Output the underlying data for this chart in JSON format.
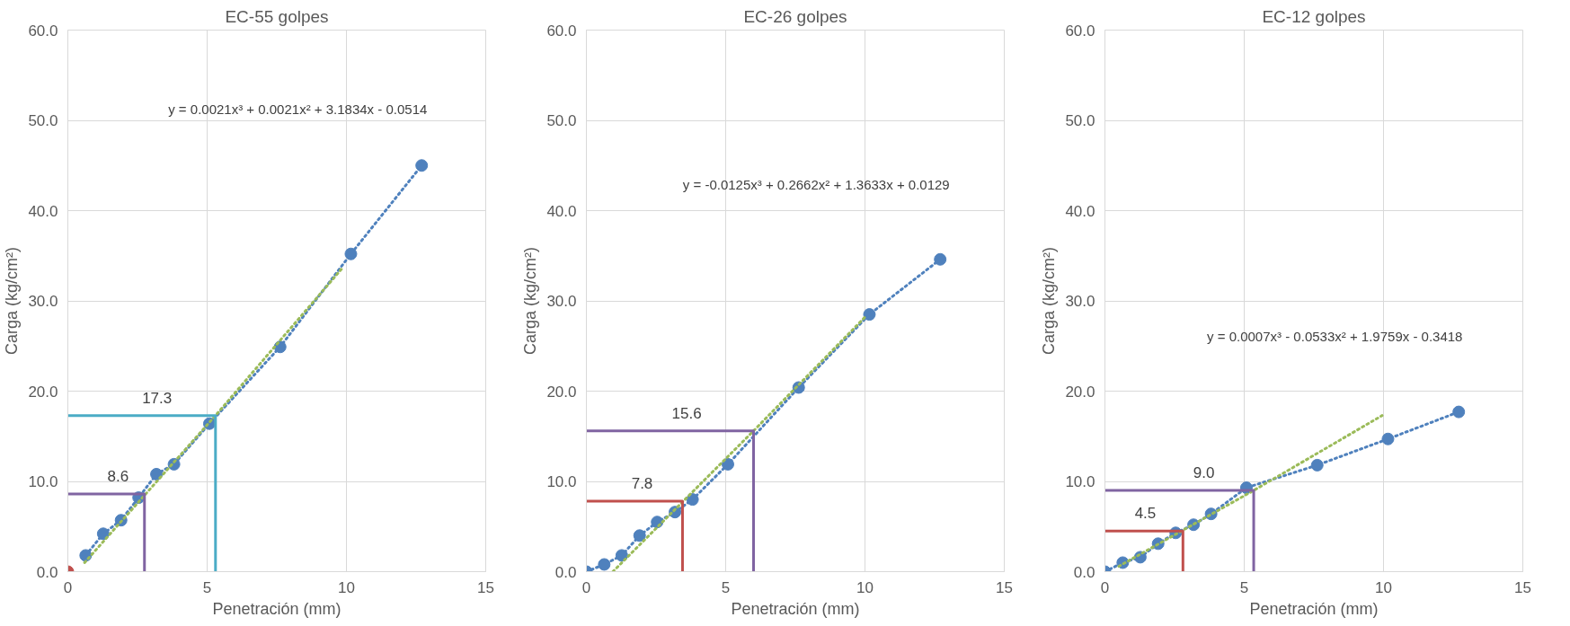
{
  "chart_data": [
    {
      "type": "line",
      "title": "EC-55 golpes",
      "xlabel": "Penetración (mm)",
      "ylabel": "Carga (kg/cm²)",
      "xlim": [
        0,
        15
      ],
      "xticks": [
        0,
        5,
        10,
        15
      ],
      "ylim": [
        0,
        60
      ],
      "yticks": [
        {
          "value": 0,
          "label": "0.0"
        },
        {
          "value": 10,
          "label": "10.0"
        },
        {
          "value": 20,
          "label": "20.0"
        },
        {
          "value": 30,
          "label": "30.0"
        },
        {
          "value": 40,
          "label": "40.0"
        },
        {
          "value": 50,
          "label": "50.0"
        },
        {
          "value": 60,
          "label": "60.0"
        }
      ],
      "grid": true,
      "series": [
        {
          "color": "#4f81bd",
          "marker": "circle",
          "line_style": "dotted",
          "x": [
            0.64,
            1.27,
            1.91,
            2.54,
            3.18,
            3.81,
            5.08,
            7.62,
            10.16,
            12.7
          ],
          "values": [
            1.8,
            4.2,
            5.7,
            8.2,
            10.8,
            11.9,
            16.4,
            24.9,
            35.2,
            45.0
          ]
        },
        {
          "type": "scatter",
          "color": "#c0504d",
          "marker": "circle",
          "x": [
            0
          ],
          "values": [
            0
          ]
        },
        {
          "type": "line",
          "color": "#9bbb59",
          "marker": "none",
          "line_style": "dotted",
          "x": [
            0.6,
            5.3,
            9.9
          ],
          "values": [
            1.0,
            17.3,
            33.8
          ]
        },
        {
          "type": "line",
          "color": "#8064a2",
          "marker": "none",
          "line_style": "solid",
          "x": [
            0,
            2.75,
            2.75
          ],
          "values": [
            8.6,
            8.6,
            0
          ]
        },
        {
          "type": "line",
          "color": "#4bacc6",
          "marker": "none",
          "line_style": "solid",
          "x": [
            0,
            5.3,
            5.3
          ],
          "values": [
            17.3,
            17.3,
            0
          ]
        }
      ],
      "annotations": [
        "y = 0.0021x³ + 0.0021x² + 3.1834x - 0.0514",
        {
          "text": "8.6",
          "x": 1.8,
          "y": 8.6
        },
        {
          "text": "17.3",
          "x": 3.2,
          "y": 17.3
        }
      ]
    },
    {
      "type": "line",
      "title": "EC-26 golpes",
      "xlabel": "Penetración (mm)",
      "ylabel": "Carga (kg/cm²)",
      "xlim": [
        0,
        15
      ],
      "xticks": [
        0,
        5,
        10,
        15
      ],
      "ylim": [
        0,
        60
      ],
      "yticks": [
        {
          "value": 0,
          "label": "0.0"
        },
        {
          "value": 10,
          "label": "10.0"
        },
        {
          "value": 20,
          "label": "20.0"
        },
        {
          "value": 30,
          "label": "30.0"
        },
        {
          "value": 40,
          "label": "40.0"
        },
        {
          "value": 50,
          "label": "50.0"
        },
        {
          "value": 60,
          "label": "60.0"
        }
      ],
      "grid": true,
      "series": [
        {
          "color": "#4f81bd",
          "marker": "circle",
          "line_style": "dotted",
          "x": [
            0,
            0.64,
            1.27,
            1.91,
            2.54,
            3.18,
            3.81,
            5.08,
            7.62,
            10.16,
            12.7
          ],
          "values": [
            0,
            0.8,
            1.8,
            4.0,
            5.5,
            6.6,
            8.0,
            11.9,
            20.4,
            28.5,
            34.6
          ]
        },
        {
          "type": "line",
          "color": "#9bbb59",
          "marker": "none",
          "line_style": "dotted",
          "x": [
            0.95,
            6.0,
            10.0
          ],
          "values": [
            0,
            15.6,
            28.2
          ]
        },
        {
          "type": "line",
          "color": "#c0504d",
          "marker": "none",
          "line_style": "solid",
          "x": [
            0,
            3.45,
            3.45
          ],
          "values": [
            7.8,
            7.8,
            0
          ]
        },
        {
          "type": "line",
          "color": "#8064a2",
          "marker": "none",
          "line_style": "solid",
          "x": [
            0,
            6.0,
            6.0
          ],
          "values": [
            15.6,
            15.6,
            0
          ]
        }
      ],
      "annotations": [
        "y = -0.0125x³ + 0.2662x² + 1.3633x + 0.0129",
        {
          "text": "7.8",
          "x": 2.0,
          "y": 7.8
        },
        {
          "text": "15.6",
          "x": 3.6,
          "y": 15.6
        }
      ]
    },
    {
      "type": "line",
      "title": "EC-12 golpes",
      "xlabel": "Penetración (mm)",
      "ylabel": "Carga (kg/cm²)",
      "xlim": [
        0,
        15
      ],
      "xticks": [
        0,
        5,
        10,
        15
      ],
      "ylim": [
        0,
        60
      ],
      "yticks": [
        {
          "value": 0,
          "label": "0.0"
        },
        {
          "value": 10,
          "label": "10.0"
        },
        {
          "value": 20,
          "label": "20.0"
        },
        {
          "value": 30,
          "label": "30.0"
        },
        {
          "value": 40,
          "label": "40.0"
        },
        {
          "value": 50,
          "label": "50.0"
        },
        {
          "value": 60,
          "label": "60.0"
        }
      ],
      "grid": true,
      "series": [
        {
          "color": "#4f81bd",
          "marker": "circle",
          "line_style": "dotted",
          "x": [
            0,
            0.64,
            1.27,
            1.91,
            2.54,
            3.18,
            3.81,
            5.08,
            7.62,
            10.16,
            12.7
          ],
          "values": [
            0,
            1.0,
            1.6,
            3.1,
            4.3,
            5.2,
            6.4,
            9.3,
            11.8,
            14.7,
            17.7
          ]
        },
        {
          "type": "line",
          "color": "#9bbb59",
          "marker": "none",
          "line_style": "dotted",
          "x": [
            0.5,
            5.34,
            9.95
          ],
          "values": [
            0.6,
            9.0,
            17.3
          ]
        },
        {
          "type": "line",
          "color": "#c0504d",
          "marker": "none",
          "line_style": "solid",
          "x": [
            0,
            2.8,
            2.8
          ],
          "values": [
            4.5,
            4.5,
            0
          ]
        },
        {
          "type": "line",
          "color": "#8064a2",
          "marker": "none",
          "line_style": "solid",
          "x": [
            0,
            5.34,
            5.34
          ],
          "values": [
            9.0,
            9.0,
            0
          ]
        }
      ],
      "annotations": [
        "y = 0.0007x³ - 0.0533x² + 1.9759x - 0.3418",
        {
          "text": "4.5",
          "x": 1.45,
          "y": 4.5
        },
        {
          "text": "9.0",
          "x": 3.55,
          "y": 9.0
        }
      ]
    }
  ]
}
